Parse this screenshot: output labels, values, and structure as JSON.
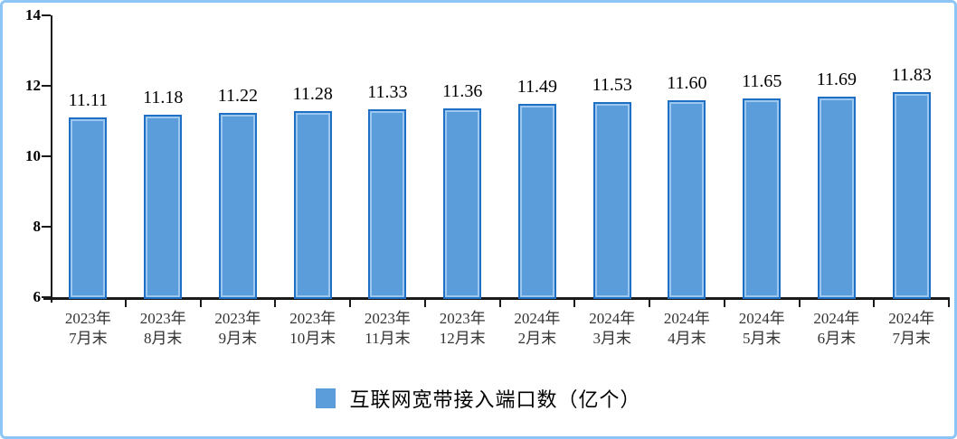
{
  "chart_data": {
    "type": "bar",
    "title": "",
    "legend": "互联网宽带接入端口数（亿个）",
    "legend_position": "bottom",
    "categories": [
      "2023年7月末",
      "2023年8月末",
      "2023年9月末",
      "2023年10月末",
      "2023年11月末",
      "2023年12月末",
      "2024年2月末",
      "2024年3月末",
      "2024年4月末",
      "2024年5月末",
      "2024年6月末",
      "2024年7月末"
    ],
    "category_lines": [
      [
        "2023年",
        "7月末"
      ],
      [
        "2023年",
        "8月末"
      ],
      [
        "2023年",
        "9月末"
      ],
      [
        "2023年",
        "10月末"
      ],
      [
        "2023年",
        "11月末"
      ],
      [
        "2023年",
        "12月末"
      ],
      [
        "2024年",
        "2月末"
      ],
      [
        "2024年",
        "3月末"
      ],
      [
        "2024年",
        "4月末"
      ],
      [
        "2024年",
        "5月末"
      ],
      [
        "2024年",
        "6月末"
      ],
      [
        "2024年",
        "7月末"
      ]
    ],
    "values": [
      11.11,
      11.18,
      11.22,
      11.28,
      11.33,
      11.36,
      11.49,
      11.53,
      11.6,
      11.65,
      11.69,
      11.83
    ],
    "value_labels": [
      "11.11",
      "11.18",
      "11.22",
      "11.28",
      "11.33",
      "11.36",
      "11.49",
      "11.53",
      "11.60",
      "11.65",
      "11.69",
      "11.83"
    ],
    "xlabel": "",
    "ylabel": "",
    "ylim": [
      6,
      14
    ],
    "yticks": [
      6,
      8,
      10,
      12,
      14
    ],
    "grid": false
  },
  "colors": {
    "bar_fill": "#5B9DDB",
    "bar_border": "#1F6FC4",
    "bar_inner_highlight": "#9CC7EE",
    "legend_swatch": "#5B9DDB",
    "frame_border": "#8DC5F5",
    "axis": "#1A1A1A",
    "value_label_text": "#000000",
    "axis_label_text": "#333333"
  }
}
